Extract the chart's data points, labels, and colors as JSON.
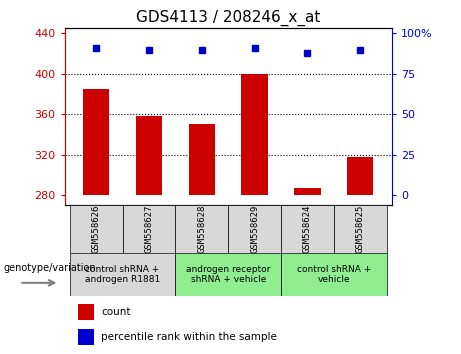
{
  "title": "GDS4113 / 208246_x_at",
  "samples": [
    "GSM558626",
    "GSM558627",
    "GSM558628",
    "GSM558629",
    "GSM558624",
    "GSM558625"
  ],
  "counts": [
    385,
    358,
    350,
    400,
    287,
    318
  ],
  "percentile_ranks": [
    91,
    90,
    90,
    91,
    88,
    90
  ],
  "y_min": 270,
  "y_max": 445,
  "y_ticks": [
    280,
    320,
    360,
    400,
    440
  ],
  "right_y_ticks": [
    0,
    25,
    50,
    75,
    100
  ],
  "right_y_labels": [
    "0",
    "25",
    "50",
    "75",
    "100%"
  ],
  "bar_color": "#cc0000",
  "dot_color": "#0000cc",
  "left_label": "genotype/variation",
  "legend_count_label": "count",
  "legend_pct_label": "percentile rank within the sample",
  "title_fontsize": 11,
  "tick_fontsize": 8,
  "group_info": [
    {
      "span": [
        0,
        1
      ],
      "label": "control shRNA +\nandrogen R1881",
      "color": "#d8d8d8"
    },
    {
      "span": [
        2,
        3
      ],
      "label": "androgen receptor\nshRNA + vehicle",
      "color": "#90ee90"
    },
    {
      "span": [
        4,
        5
      ],
      "label": "control shRNA +\nvehicle",
      "color": "#90ee90"
    }
  ]
}
